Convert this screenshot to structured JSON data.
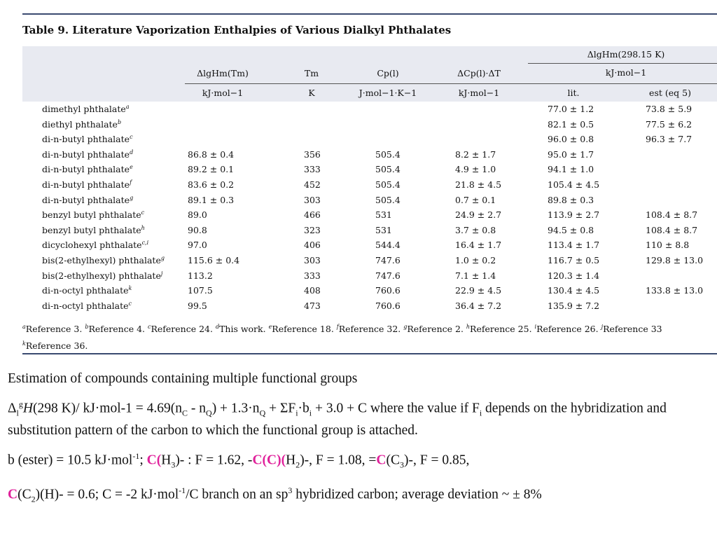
{
  "caption": "Table 9. Literature Vaporization Enthalpies of Various Dialkyl Phthalates",
  "head": {
    "group": "ΔlgHm(298.15 K)",
    "group_unit": "kJ·mol−1",
    "col1": "ΔlgHm(Tm)",
    "col2": "Tm",
    "col3": "Cp(l)",
    "col4": "ΔCp(l)·ΔT",
    "u1": "kJ·mol−1",
    "u2": "K",
    "u3": "J·mol−1·K−1",
    "u4": "kJ·mol−1",
    "u5": "lit.",
    "u6": "est (eq 5)"
  },
  "rows": [
    {
      "name": "dimethyl phthalate",
      "ref": "a",
      "c1": "",
      "c2": "",
      "c3": "",
      "c4": "",
      "c5": "77.0 ± 1.2",
      "c6": "73.8 ± 5.9"
    },
    {
      "name": "diethyl phthalate",
      "ref": "b",
      "c1": "",
      "c2": "",
      "c3": "",
      "c4": "",
      "c5": "82.1 ± 0.5",
      "c6": "77.5 ± 6.2"
    },
    {
      "name": "di-n-butyl phthalate",
      "ref": "c",
      "c1": "",
      "c2": "",
      "c3": "",
      "c4": "",
      "c5": "96.0 ± 0.8",
      "c6": "96.3 ± 7.7"
    },
    {
      "name": "di-n-butyl phthalate",
      "ref": "d",
      "c1": "86.8 ± 0.4",
      "c2": "356",
      "c3": "505.4",
      "c4": "8.2 ± 1.7",
      "c5": "95.0 ± 1.7",
      "c6": ""
    },
    {
      "name": "di-n-butyl phthalate",
      "ref": "e",
      "c1": "89.2 ± 0.1",
      "c2": "333",
      "c3": "505.4",
      "c4": "4.9 ± 1.0",
      "c5": "94.1 ± 1.0",
      "c6": ""
    },
    {
      "name": "di-n-butyl phthalate",
      "ref": "f",
      "c1": "83.6 ± 0.2",
      "c2": "452",
      "c3": "505.4",
      "c4": "21.8 ± 4.5",
      "c5": "105.4 ± 4.5",
      "c6": ""
    },
    {
      "name": "di-n-butyl phthalate",
      "ref": "g",
      "c1": "89.1 ± 0.3",
      "c2": "303",
      "c3": "505.4",
      "c4": "0.7 ± 0.1",
      "c5": "89.8 ± 0.3",
      "c6": ""
    },
    {
      "name": "benzyl butyl phthalate",
      "ref": "c",
      "c1": "89.0",
      "c2": "466",
      "c3": "531",
      "c4": "24.9 ± 2.7",
      "c5": "113.9 ± 2.7",
      "c6": "108.4 ± 8.7"
    },
    {
      "name": "benzyl butyl phthalate",
      "ref": "h",
      "c1": "90.8",
      "c2": "323",
      "c3": "531",
      "c4": "3.7 ± 0.8",
      "c5": "94.5 ± 0.8",
      "c6": "108.4 ± 8.7"
    },
    {
      "name": "dicyclohexyl phthalate",
      "ref": "c,i",
      "c1": "97.0",
      "c2": "406",
      "c3": "544.4",
      "c4": "16.4 ± 1.7",
      "c5": "113.4 ± 1.7",
      "c6": "110 ± 8.8"
    },
    {
      "name": "bis(2-ethylhexyl) phthalate",
      "ref": "g",
      "c1": "115.6 ± 0.4",
      "c2": "303",
      "c3": "747.6",
      "c4": "1.0 ± 0.2",
      "c5": "116.7 ± 0.5",
      "c6": "129.8 ± 13.0"
    },
    {
      "name": "bis(2-ethylhexyl) phthalate",
      "ref": "j",
      "c1": "113.2",
      "c2": "333",
      "c3": "747.6",
      "c4": "7.1 ± 1.4",
      "c5": "120.3 ± 1.4",
      "c6": ""
    },
    {
      "name": "di-n-octyl phthalate",
      "ref": "k",
      "c1": "107.5",
      "c2": "408",
      "c3": "760.6",
      "c4": "22.9 ± 4.5",
      "c5": "130.4 ± 4.5",
      "c6": "133.8 ± 13.0"
    },
    {
      "name": "di-n-octyl phthalate",
      "ref": "c",
      "c1": "99.5",
      "c2": "473",
      "c3": "760.6",
      "c4": "36.4 ± 7.2",
      "c5": "135.9 ± 7.2",
      "c6": ""
    }
  ],
  "footnotes": [
    {
      "mark": "a",
      "text": "Reference 3. "
    },
    {
      "mark": "b",
      "text": "Reference 4. "
    },
    {
      "mark": "c",
      "text": "Reference 24. "
    },
    {
      "mark": "d",
      "text": "This work. "
    },
    {
      "mark": "e",
      "text": "Reference 18. "
    },
    {
      "mark": "f",
      "text": "Reference 32. "
    },
    {
      "mark": "g",
      "text": "Reference 2. "
    },
    {
      "mark": "h",
      "text": "Reference 25. "
    },
    {
      "mark": "i",
      "text": "Reference 26. "
    },
    {
      "mark": "j",
      "text": "Reference 33"
    },
    {
      "mark": "k",
      "text": "Reference 36."
    }
  ],
  "prose": {
    "heading": "Estimation of compounds containing multiple functional groups",
    "eq_a": "Δ",
    "eq_l": "l",
    "eq_g": "g",
    "eq_H": "H",
    "eq_b": "(298 K)/ kJ·mol-1  = 4.69(n",
    "eq_C": "C",
    "eq_c": " - n",
    "eq_Q": "Q",
    "eq_d": ") + 1.3·n",
    "eq_Q2": "Q",
    "eq_e": "  + ΣF",
    "eq_i": "i",
    "eq_f": "·b",
    "eq_i2": "i",
    "eq_g2": " + 3.0 + C   where the value if F",
    "eq_i3": "i",
    "eq_h": " depends on the hybridization and substitution pattern of the carbon to which the functional group is attached.",
    "b1": "b (ester) = 10.5 kJ·mol",
    "b1_sup": "-1",
    "b1_semi": "; ",
    "b2_C": "C(",
    "b2_H": "H",
    "b2_3": "3",
    "b2_rest": ")- : F = 1.62, -",
    "b3_C": "C(C)(",
    "b3_H": "H",
    "b3_2": "2",
    "b3_rest": ")-, F = 1.08, =",
    "b4_C": "C",
    "b4_a": "(C",
    "b4_3": "3",
    "b4_rest": ")-, F = 0.85,",
    "l4_C": "C",
    "l4_a": "(C",
    "l4_2": "2",
    "l4_b": ")(H)- = 0.6; C = -2 kJ·mol",
    "l4_sup": "-1",
    "l4_c": "/C branch on an sp",
    "l4_3": "3",
    "l4_d": " hybridized carbon; average deviation ~ ± 8%"
  }
}
